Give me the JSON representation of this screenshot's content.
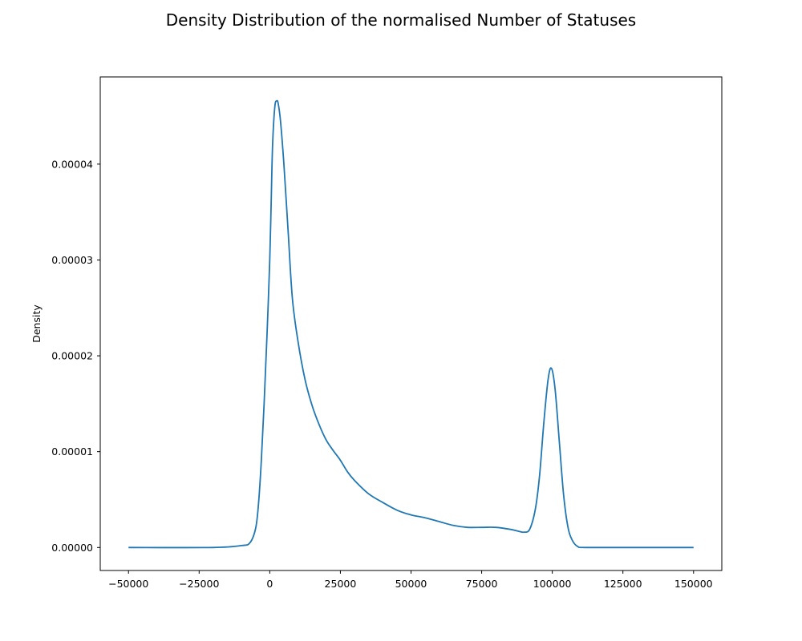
{
  "chart_data": {
    "type": "line",
    "title": "Density Distribution of the normalised Number of Statuses",
    "xlabel": "",
    "ylabel": "Density",
    "xlim": [
      -60000,
      160000
    ],
    "ylim": [
      -2.4e-06,
      4.91e-05
    ],
    "x_ticks": [
      -50000,
      -25000,
      0,
      25000,
      50000,
      75000,
      100000,
      125000,
      150000
    ],
    "x_tick_labels": [
      "−50000",
      "−25000",
      "0",
      "25000",
      "50000",
      "75000",
      "100000",
      "125000",
      "150000"
    ],
    "y_ticks": [
      0,
      1e-05,
      2e-05,
      3e-05,
      4e-05
    ],
    "y_tick_labels": [
      "0.00000",
      "0.00001",
      "0.00002",
      "0.00003",
      "0.00004"
    ],
    "grid": false,
    "legend": "none",
    "series": [
      {
        "color": "#1f77b4",
        "points": [
          [
            -50000,
            0.0
          ],
          [
            -20000,
            0.0
          ],
          [
            -10000,
            2e-07
          ],
          [
            -7000,
            5e-07
          ],
          [
            -5000,
            2e-06
          ],
          [
            -4000,
            4.5e-06
          ],
          [
            -3000,
            9e-06
          ],
          [
            -2000,
            1.5e-05
          ],
          [
            -1000,
            2.2e-05
          ],
          [
            0,
            3e-05
          ],
          [
            500,
            3.6e-05
          ],
          [
            1000,
            4.2e-05
          ],
          [
            1800,
            4.6e-05
          ],
          [
            2500,
            4.66e-05
          ],
          [
            3000,
            4.63e-05
          ],
          [
            3800,
            4.45e-05
          ],
          [
            5000,
            4e-05
          ],
          [
            6500,
            3.3e-05
          ],
          [
            8000,
            2.6e-05
          ],
          [
            10000,
            2.15e-05
          ],
          [
            12500,
            1.75e-05
          ],
          [
            15000,
            1.48e-05
          ],
          [
            17500,
            1.28e-05
          ],
          [
            20000,
            1.12e-05
          ],
          [
            22500,
            1.01e-05
          ],
          [
            25000,
            9.1e-06
          ],
          [
            27500,
            7.9e-06
          ],
          [
            30000,
            7e-06
          ],
          [
            35000,
            5.6e-06
          ],
          [
            40000,
            4.7e-06
          ],
          [
            45000,
            3.9e-06
          ],
          [
            50000,
            3.4e-06
          ],
          [
            55000,
            3.1e-06
          ],
          [
            60000,
            2.7e-06
          ],
          [
            65000,
            2.3e-06
          ],
          [
            70000,
            2.1e-06
          ],
          [
            75000,
            2.1e-06
          ],
          [
            80000,
            2.1e-06
          ],
          [
            85000,
            1.9e-06
          ],
          [
            88000,
            1.7e-06
          ],
          [
            90000,
            1.6e-06
          ],
          [
            92000,
            1.9e-06
          ],
          [
            94000,
            4e-06
          ],
          [
            95500,
            7.5e-06
          ],
          [
            97000,
            1.3e-05
          ],
          [
            98500,
            1.75e-05
          ],
          [
            99700,
            1.87e-05
          ],
          [
            101000,
            1.65e-05
          ],
          [
            102500,
            1.1e-05
          ],
          [
            104000,
            5.5e-06
          ],
          [
            105500,
            2.2e-06
          ],
          [
            107000,
            8e-07
          ],
          [
            109000,
            1e-07
          ],
          [
            112000,
            0.0
          ],
          [
            130000,
            0.0
          ],
          [
            150000,
            0.0
          ]
        ]
      }
    ]
  }
}
